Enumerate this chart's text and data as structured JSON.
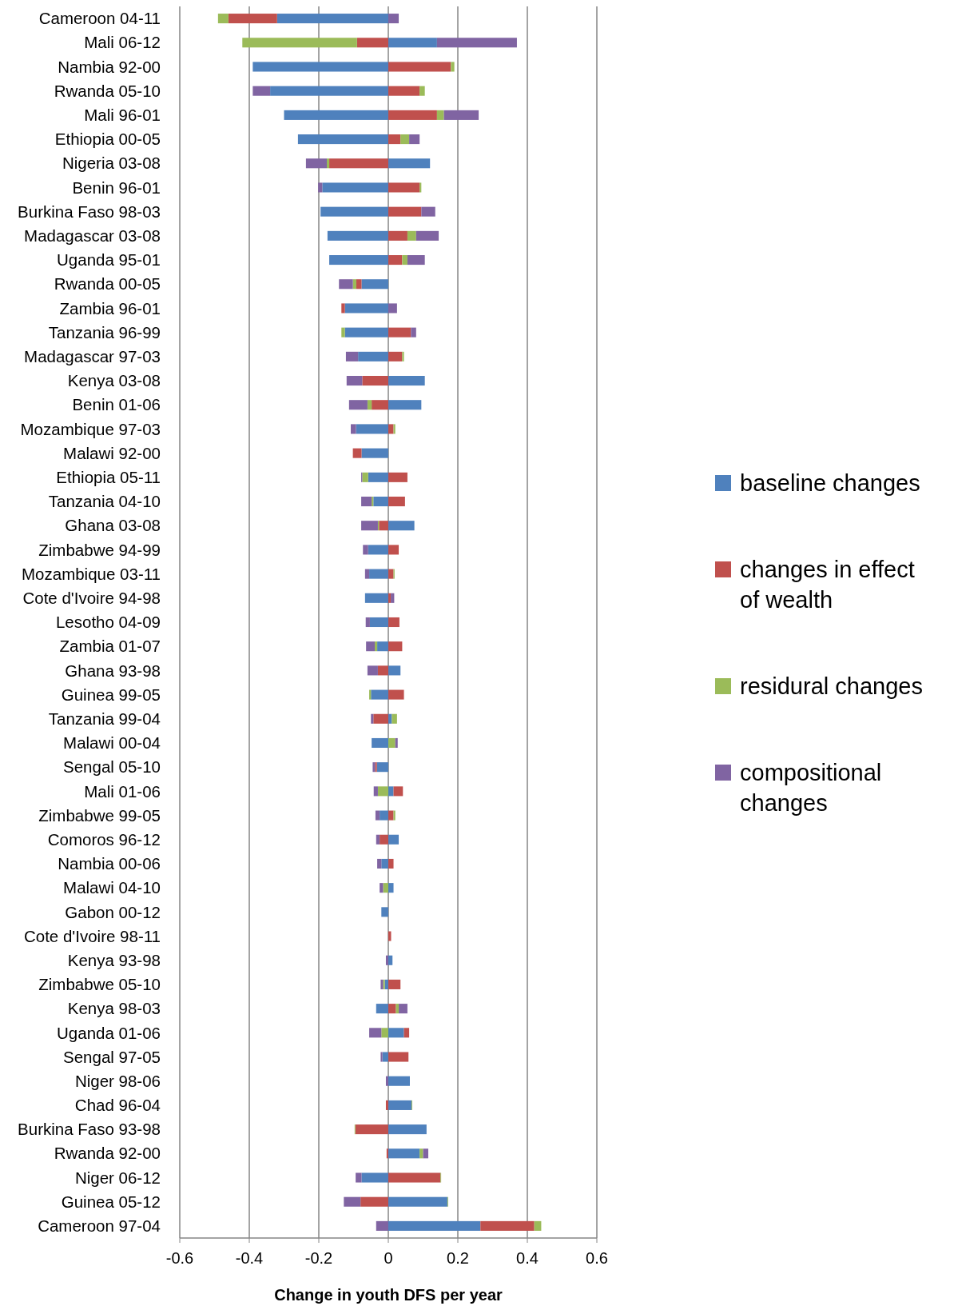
{
  "chart_data": {
    "type": "bar",
    "orientation": "horizontal",
    "stacked": true,
    "xlabel": "Change in youth DFS per year",
    "categories": [
      "Cameroon 04-11",
      "Mali 06-12",
      "Nambia 92-00",
      "Rwanda 05-10",
      "Mali 96-01",
      "Ethiopia 00-05",
      "Nigeria 03-08",
      "Benin 96-01",
      "Burkina Faso 98-03",
      "Madagascar 03-08",
      "Uganda 95-01",
      "Rwanda 00-05",
      "Zambia 96-01",
      "Tanzania 96-99",
      "Madagascar 97-03",
      "Kenya 03-08",
      "Benin 01-06",
      "Mozambique 97-03",
      "Malawi 92-00",
      "Ethiopia 05-11",
      "Tanzania 04-10",
      "Ghana 03-08",
      "Zimbabwe 94-99",
      "Mozambique 03-11",
      "Cote d'Ivoire 94-98",
      "Lesotho 04-09",
      "Zambia 01-07",
      "Ghana 93-98",
      "Guinea 99-05",
      "Tanzania 99-04",
      "Malawi 00-04",
      "Sengal 05-10",
      "Mali 01-06",
      "Zimbabwe 99-05",
      "Comoros 96-12",
      "Nambia 00-06",
      "Malawi 04-10",
      "Gabon 00-12",
      "Cote d'Ivoire 98-11",
      "Kenya 93-98",
      "Zimbabwe 05-10",
      "Kenya 98-03",
      "Uganda 01-06",
      "Sengal 97-05",
      "Niger 98-06",
      "Chad 96-04",
      "Burkina Faso 93-98",
      "Rwanda 92-00",
      "Niger 06-12",
      "Guinea 05-12",
      "Cameroon 97-04"
    ],
    "series": [
      {
        "name": "baseline changes",
        "color": "#4f81bd",
        "values": [
          -0.32,
          0.14,
          -0.39,
          -0.34,
          -0.3,
          -0.26,
          0.12,
          -0.19,
          -0.195,
          -0.175,
          -0.17,
          -0.077,
          -0.125,
          -0.125,
          -0.087,
          0.105,
          0.095,
          -0.093,
          -0.077,
          -0.058,
          -0.043,
          0.075,
          -0.058,
          -0.055,
          -0.067,
          -0.053,
          -0.032,
          0.035,
          -0.05,
          0.01,
          -0.048,
          -0.033,
          0.015,
          -0.025,
          0.03,
          -0.02,
          0.015,
          -0.02,
          0,
          0.012,
          -0.01,
          -0.035,
          0.045,
          -0.017,
          0.062,
          0.067,
          0.11,
          0.09,
          -0.077,
          0.17,
          0.265
        ]
      },
      {
        "name": "changes in effect of wealth",
        "color": "#c0504d",
        "values": [
          -0.14,
          -0.09,
          0.18,
          0.09,
          0.14,
          0.035,
          -0.17,
          0.09,
          0.095,
          0.055,
          0.04,
          -0.015,
          -0.01,
          0.065,
          0.04,
          -0.075,
          -0.048,
          0.015,
          -0.025,
          0.055,
          0.048,
          -0.027,
          0.03,
          0.015,
          0.007,
          0.032,
          0.04,
          -0.03,
          0.045,
          -0.043,
          0,
          -0.005,
          0.027,
          0.015,
          -0.025,
          0.015,
          0,
          0,
          0.008,
          0,
          0.035,
          0.022,
          0.015,
          0.058,
          0,
          -0.007,
          -0.095,
          -0.005,
          0.15,
          -0.08,
          0.155
        ]
      },
      {
        "name": "residural changes",
        "color": "#9bbb59",
        "values": [
          -0.03,
          -0.33,
          0.01,
          0.015,
          0.02,
          0.025,
          -0.007,
          0.005,
          0,
          0.025,
          0.015,
          -0.01,
          0,
          -0.01,
          0.005,
          0,
          -0.012,
          0.005,
          0,
          -0.017,
          -0.005,
          -0.003,
          0,
          0.003,
          0,
          0,
          -0.007,
          0,
          -0.005,
          0.015,
          0.02,
          0,
          -0.03,
          0.005,
          0,
          0,
          -0.015,
          0,
          0,
          0,
          -0.005,
          0.008,
          -0.02,
          0,
          0,
          0.002,
          -0.002,
          0.01,
          0.002,
          0.002,
          0.02
        ]
      },
      {
        "name": "compositional changes",
        "color": "#8064a2",
        "values": [
          0.03,
          0.23,
          0,
          -0.05,
          0.1,
          0.03,
          -0.06,
          -0.012,
          0.04,
          0.065,
          0.05,
          -0.04,
          0.025,
          0.015,
          -0.035,
          -0.045,
          -0.053,
          -0.015,
          0,
          -0.003,
          -0.03,
          -0.048,
          -0.015,
          -0.012,
          0.01,
          -0.012,
          -0.025,
          -0.03,
          0,
          -0.007,
          0.007,
          -0.007,
          -0.012,
          -0.012,
          -0.01,
          -0.012,
          -0.01,
          0,
          0,
          -0.007,
          -0.007,
          0.025,
          -0.035,
          -0.005,
          -0.007,
          0,
          0,
          0.015,
          -0.017,
          -0.048,
          -0.035
        ]
      }
    ],
    "xlim": [
      -0.6,
      0.6
    ],
    "xticks": [
      -0.6,
      -0.4,
      -0.2,
      0,
      0.2,
      0.4,
      0.6
    ],
    "grid": "x",
    "legend": "right"
  }
}
